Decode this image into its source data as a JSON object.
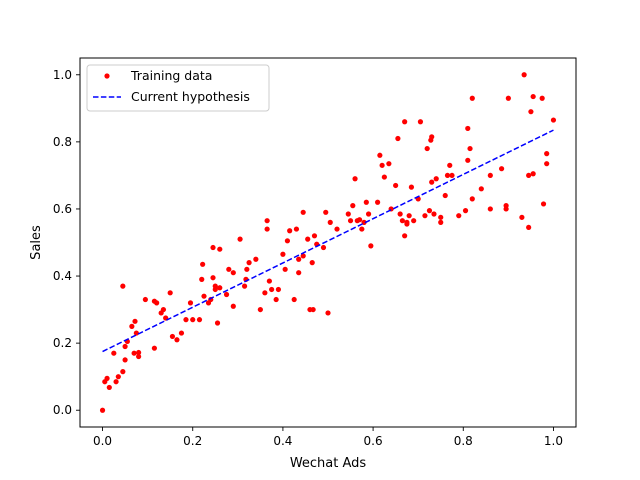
{
  "chart_data": {
    "type": "scatter",
    "xlabel": "Wechat Ads",
    "ylabel": "Sales",
    "xlim": [
      -0.05,
      1.05
    ],
    "ylim": [
      -0.05,
      1.05
    ],
    "xticks": [
      "0.0",
      "0.2",
      "0.4",
      "0.6",
      "0.8",
      "1.0"
    ],
    "yticks": [
      "0.0",
      "0.2",
      "0.4",
      "0.6",
      "0.8",
      "1.0"
    ],
    "grid": false,
    "legend_position": "top-left",
    "colors": {
      "training": "#ff0000",
      "hypothesis": "#0000ff"
    },
    "series": [
      {
        "name": "Training data",
        "kind": "scatter",
        "points": [
          [
            0.0,
            0.0
          ],
          [
            0.005,
            0.085
          ],
          [
            0.01,
            0.095
          ],
          [
            0.015,
            0.068
          ],
          [
            0.025,
            0.17
          ],
          [
            0.03,
            0.085
          ],
          [
            0.035,
            0.1
          ],
          [
            0.045,
            0.115
          ],
          [
            0.045,
            0.37
          ],
          [
            0.05,
            0.15
          ],
          [
            0.05,
            0.19
          ],
          [
            0.055,
            0.205
          ],
          [
            0.065,
            0.25
          ],
          [
            0.07,
            0.17
          ],
          [
            0.072,
            0.265
          ],
          [
            0.075,
            0.23
          ],
          [
            0.08,
            0.16
          ],
          [
            0.08,
            0.172
          ],
          [
            0.095,
            0.33
          ],
          [
            0.115,
            0.185
          ],
          [
            0.115,
            0.325
          ],
          [
            0.12,
            0.32
          ],
          [
            0.13,
            0.29
          ],
          [
            0.135,
            0.3
          ],
          [
            0.14,
            0.275
          ],
          [
            0.15,
            0.35
          ],
          [
            0.155,
            0.22
          ],
          [
            0.165,
            0.21
          ],
          [
            0.175,
            0.23
          ],
          [
            0.185,
            0.27
          ],
          [
            0.195,
            0.32
          ],
          [
            0.2,
            0.27
          ],
          [
            0.215,
            0.27
          ],
          [
            0.22,
            0.39
          ],
          [
            0.222,
            0.435
          ],
          [
            0.225,
            0.34
          ],
          [
            0.235,
            0.32
          ],
          [
            0.24,
            0.33
          ],
          [
            0.245,
            0.485
          ],
          [
            0.245,
            0.395
          ],
          [
            0.25,
            0.36
          ],
          [
            0.25,
            0.37
          ],
          [
            0.255,
            0.26
          ],
          [
            0.26,
            0.48
          ],
          [
            0.26,
            0.365
          ],
          [
            0.275,
            0.345
          ],
          [
            0.28,
            0.42
          ],
          [
            0.29,
            0.31
          ],
          [
            0.29,
            0.41
          ],
          [
            0.305,
            0.51
          ],
          [
            0.315,
            0.37
          ],
          [
            0.318,
            0.39
          ],
          [
            0.32,
            0.42
          ],
          [
            0.325,
            0.44
          ],
          [
            0.34,
            0.45
          ],
          [
            0.35,
            0.3
          ],
          [
            0.36,
            0.35
          ],
          [
            0.365,
            0.565
          ],
          [
            0.365,
            0.54
          ],
          [
            0.37,
            0.385
          ],
          [
            0.375,
            0.36
          ],
          [
            0.385,
            0.33
          ],
          [
            0.39,
            0.36
          ],
          [
            0.4,
            0.465
          ],
          [
            0.405,
            0.42
          ],
          [
            0.41,
            0.505
          ],
          [
            0.415,
            0.535
          ],
          [
            0.425,
            0.33
          ],
          [
            0.43,
            0.54
          ],
          [
            0.435,
            0.45
          ],
          [
            0.435,
            0.41
          ],
          [
            0.445,
            0.46
          ],
          [
            0.445,
            0.59
          ],
          [
            0.455,
            0.51
          ],
          [
            0.46,
            0.3
          ],
          [
            0.465,
            0.44
          ],
          [
            0.467,
            0.3
          ],
          [
            0.47,
            0.52
          ],
          [
            0.475,
            0.495
          ],
          [
            0.49,
            0.485
          ],
          [
            0.495,
            0.59
          ],
          [
            0.5,
            0.29
          ],
          [
            0.505,
            0.56
          ],
          [
            0.52,
            0.54
          ],
          [
            0.545,
            0.585
          ],
          [
            0.55,
            0.565
          ],
          [
            0.555,
            0.61
          ],
          [
            0.56,
            0.69
          ],
          [
            0.565,
            0.565
          ],
          [
            0.57,
            0.568
          ],
          [
            0.575,
            0.54
          ],
          [
            0.58,
            0.56
          ],
          [
            0.585,
            0.62
          ],
          [
            0.59,
            0.585
          ],
          [
            0.595,
            0.49
          ],
          [
            0.61,
            0.62
          ],
          [
            0.615,
            0.76
          ],
          [
            0.62,
            0.73
          ],
          [
            0.625,
            0.695
          ],
          [
            0.635,
            0.735
          ],
          [
            0.64,
            0.6
          ],
          [
            0.65,
            0.67
          ],
          [
            0.655,
            0.81
          ],
          [
            0.66,
            0.585
          ],
          [
            0.665,
            0.565
          ],
          [
            0.67,
            0.86
          ],
          [
            0.675,
            0.555
          ],
          [
            0.67,
            0.52
          ],
          [
            0.675,
            0.56
          ],
          [
            0.68,
            0.58
          ],
          [
            0.685,
            0.665
          ],
          [
            0.69,
            0.565
          ],
          [
            0.7,
            0.63
          ],
          [
            0.705,
            0.86
          ],
          [
            0.715,
            0.58
          ],
          [
            0.72,
            0.78
          ],
          [
            0.725,
            0.595
          ],
          [
            0.728,
            0.805
          ],
          [
            0.73,
            0.815
          ],
          [
            0.73,
            0.68
          ],
          [
            0.735,
            0.585
          ],
          [
            0.74,
            0.69
          ],
          [
            0.75,
            0.56
          ],
          [
            0.75,
            0.575
          ],
          [
            0.76,
            0.64
          ],
          [
            0.765,
            0.7
          ],
          [
            0.77,
            0.73
          ],
          [
            0.775,
            0.7
          ],
          [
            0.79,
            0.58
          ],
          [
            0.805,
            0.595
          ],
          [
            0.81,
            0.84
          ],
          [
            0.81,
            0.745
          ],
          [
            0.815,
            0.78
          ],
          [
            0.82,
            0.93
          ],
          [
            0.82,
            0.63
          ],
          [
            0.84,
            0.66
          ],
          [
            0.86,
            0.6
          ],
          [
            0.86,
            0.7
          ],
          [
            0.885,
            0.72
          ],
          [
            0.895,
            0.6
          ],
          [
            0.895,
            0.61
          ],
          [
            0.9,
            0.93
          ],
          [
            0.93,
            0.575
          ],
          [
            0.935,
            1.0
          ],
          [
            0.945,
            0.7
          ],
          [
            0.945,
            0.545
          ],
          [
            0.95,
            0.89
          ],
          [
            0.955,
            0.935
          ],
          [
            0.955,
            0.705
          ],
          [
            0.975,
            0.93
          ],
          [
            0.978,
            0.615
          ],
          [
            0.985,
            0.735
          ],
          [
            0.985,
            0.765
          ],
          [
            1.0,
            0.865
          ]
        ]
      },
      {
        "name": "Current hypothesis",
        "kind": "line",
        "points": [
          [
            0.0,
            0.175
          ],
          [
            1.0,
            0.835
          ]
        ]
      }
    ]
  }
}
